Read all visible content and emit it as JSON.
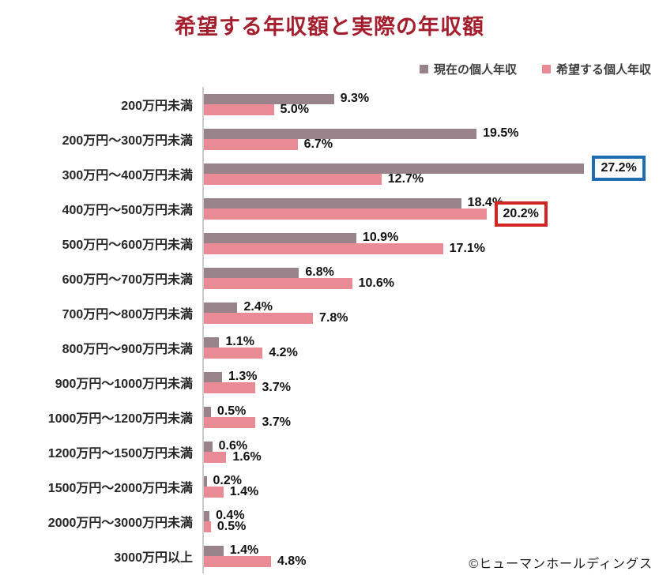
{
  "title": "希望する年収額と実際の年収額",
  "colors": {
    "title": "#a51e2d",
    "axis_line": "#cccccc",
    "series_current": "#98838b",
    "series_desired": "#ea8a94",
    "highlight_blue": "#1f6cb0",
    "highlight_red": "#d02724"
  },
  "chart_data": {
    "type": "bar",
    "orientation": "horizontal",
    "title": "希望する年収額と実際の年収額",
    "value_suffix": "%",
    "xlim": [
      0,
      30
    ],
    "grid": false,
    "legend_position": "top-right",
    "categories": [
      "200万円未満",
      "200万円〜300万円未満",
      "300万円〜400万円未満",
      "400万円〜500万円未満",
      "500万円〜600万円未満",
      "600万円〜700万円未満",
      "700万円〜800万円未満",
      "800万円〜900万円未満",
      "900万円〜1000万円未満",
      "1000万円〜1200万円未満",
      "1200万円〜1500万円未満",
      "1500万円〜2000万円未満",
      "2000万円〜3000万円未満",
      "3000万円以上"
    ],
    "series": [
      {
        "name": "現在の個人年収",
        "color": "#98838b",
        "values": [
          9.3,
          19.5,
          27.2,
          18.4,
          10.9,
          6.8,
          2.4,
          1.1,
          1.3,
          0.5,
          0.6,
          0.2,
          0.4,
          1.4
        ]
      },
      {
        "name": "希望する個人年収",
        "color": "#ea8a94",
        "values": [
          5.0,
          6.7,
          12.7,
          20.2,
          17.1,
          10.6,
          7.8,
          4.2,
          3.7,
          3.7,
          1.6,
          1.4,
          0.5,
          4.8
        ]
      }
    ],
    "highlights": [
      {
        "series": 0,
        "category_index": 2,
        "box_color": "#1f6cb0"
      },
      {
        "series": 1,
        "category_index": 3,
        "box_color": "#d02724"
      }
    ]
  },
  "footer": {
    "copyright": "©ヒューマンホールディングス"
  }
}
